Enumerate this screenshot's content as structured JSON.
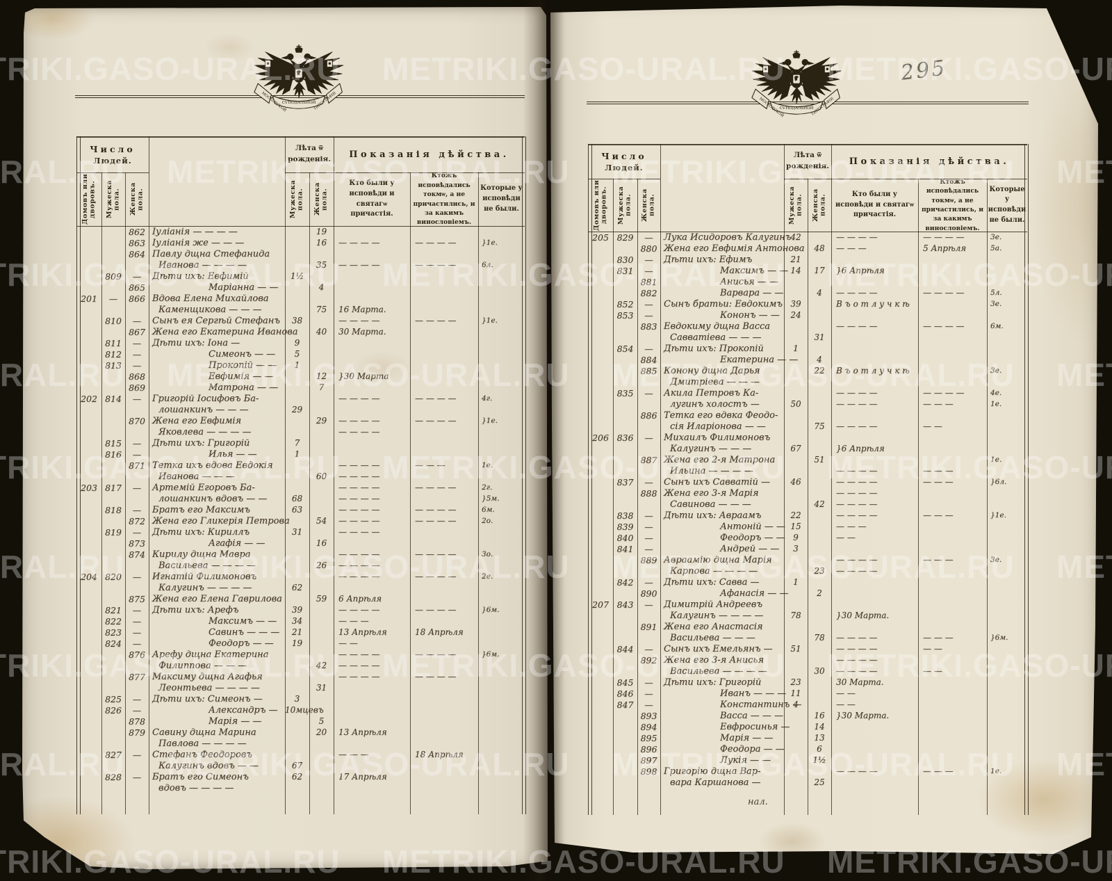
{
  "watermark": {
    "text": "METRIKI.GASO-URAL.RU"
  },
  "page_number": "295",
  "catchword": "нал.",
  "colors": {
    "background": "#131008",
    "paper_left": "#e6dfce",
    "paper_right": "#eae3d1",
    "ink": "#33291c",
    "watermark": "rgba(255,255,255,0.30)",
    "pencil": "#6d6a60"
  },
  "emblem": {
    "ribbon_left": "МОСКОВСКОЙ",
    "ribbon_center": "СѴНОДАЛЬНОЙ",
    "ribbon_right": "ТИПОГРАФІИ"
  },
  "header": {
    "number": "Число",
    "people": "Людей.",
    "houses": "Домовъ или дворовъ.",
    "male": "Мужеска пола.",
    "female": "Женска пола.",
    "age_line1": "Лѣта ѿ",
    "age_line2": "рожденія.",
    "acts": "Показанія дѣйства.",
    "col_communed": "Кто были у исповѣди и святагѡ причастія.",
    "col_confessed": "Ктожъ исповѣдались токмѡ, а не причастились, и за какимъ винословіемъ.",
    "col_absent": "Которые у исповѣди не были."
  },
  "left_page": {
    "rows": [
      {
        "f": "862",
        "n": "Іуліанія — — — —",
        "af": "19"
      },
      {
        "f": "863",
        "n": "Іуліанія же — — —",
        "af": "16",
        "c1": "— — — —",
        "c2": "— — — —",
        "c3": "}1е."
      },
      {
        "f": "864",
        "n": "Павлу дщна Стефанида"
      },
      {
        "i": 2,
        "n": "Иванова — — — —",
        "af": "35",
        "c1": "— — — —",
        "c2": "— — — —",
        "c3": "6л."
      },
      {
        "m": "809",
        "f": "—",
        "n": "Дѣти ихъ: Евфимій",
        "am": "1½"
      },
      {
        "f": "865",
        "n": "Маріанна — —",
        "i": 1,
        "af": "4"
      },
      {
        "h": "201",
        "m": "—",
        "f": "866",
        "n": "Вдова Елена Михайлова"
      },
      {
        "i": 2,
        "n": "Каменщикова — — —",
        "af": "75",
        "c1": "16 Марта."
      },
      {
        "m": "810",
        "f": "—",
        "n": "Сынъ ея Сергѣй Стефанъ",
        "am": "38",
        "c1": "— — — —",
        "c2": "— — — —",
        "c3": "}1е."
      },
      {
        "f": "867",
        "n": "Жена его Екатерина Иванова",
        "af": "40",
        "c1": "30 Марта."
      },
      {
        "m": "811",
        "f": "—",
        "n": "Дѣти ихъ: Іона —",
        "am": "9"
      },
      {
        "m": "812",
        "f": "—",
        "n": "Симеонъ — —",
        "i": 1,
        "am": "5"
      },
      {
        "m": "813",
        "f": "—",
        "n": "Прокопій — —",
        "i": 1,
        "am": "1"
      },
      {
        "f": "868",
        "n": "Евфимія — —",
        "i": 1,
        "af": "12",
        "c1": "}30 Марта"
      },
      {
        "f": "869",
        "n": "Матрона — —",
        "i": 1,
        "af": "7"
      },
      {
        "h": "202",
        "m": "814",
        "f": "—",
        "n": "Григорій Іосифовъ Ба-",
        "c1": "— — — —",
        "c2": "— — — —",
        "c3": "4г."
      },
      {
        "i": 2,
        "n": "лошанкинъ — — —",
        "am": "29"
      },
      {
        "f": "870",
        "n": "Жена его Евфимія",
        "af": "29",
        "c1": "— — — —",
        "c2": "— — — —",
        "c3": "}1е."
      },
      {
        "i": 2,
        "n": "Яковлева — — — —",
        "c1": "— — — —"
      },
      {
        "m": "815",
        "f": "—",
        "n": "Дѣти ихъ: Григорій",
        "am": "7"
      },
      {
        "m": "816",
        "f": "—",
        "n": "Илья — —",
        "i": 1,
        "am": "1"
      },
      {
        "f": "871",
        "n": "Тетка ихъ вдова Евдокія",
        "c1": "— — — —",
        "c2": "— — —",
        "c3": "1е."
      },
      {
        "i": 2,
        "n": "Иванова — — —",
        "af": "60",
        "c1": "— — — —"
      },
      {
        "h": "203",
        "m": "817",
        "f": "—",
        "n": "Артемій Егоровъ Ба-",
        "c1": "— — — —",
        "c2": "— — — —",
        "c3": "2г."
      },
      {
        "i": 2,
        "n": "лошанкинъ вдовъ — —",
        "am": "68",
        "c1": "— — — —",
        "c3": "}5м."
      },
      {
        "m": "818",
        "f": "—",
        "n": "Братъ его Максимъ",
        "am": "63",
        "c1": "— — — —",
        "c2": "— — — —",
        "c3": "6м."
      },
      {
        "f": "872",
        "n": "Жена его Гликерія Петрова",
        "af": "54",
        "c1": "— — — —",
        "c2": "— — — —",
        "c3": "2о."
      },
      {
        "m": "819",
        "f": "—",
        "n": "Дѣти ихъ: Кириллъ",
        "am": "31",
        "c1": "— — — —"
      },
      {
        "f": "873",
        "n": "Агафія — —",
        "i": 1,
        "af": "16"
      },
      {
        "f": "874",
        "n": "Кирилу дщна Мавра",
        "c1": "— — — —",
        "c2": "— — — —",
        "c3": "3о."
      },
      {
        "i": 2,
        "n": "Васильева — — — —",
        "af": "26",
        "c1": "— — — —"
      },
      {
        "h": "204",
        "m": "820",
        "f": "—",
        "n": "Игнатій Филимоновъ",
        "c1": "— — — —",
        "c2": "— — — —",
        "c3": "2е."
      },
      {
        "i": 2,
        "n": "Калугинъ — — — —",
        "am": "62"
      },
      {
        "f": "875",
        "n": "Жена его Елена Гаврилова",
        "af": "59",
        "c1": "6 Апрѣля"
      },
      {
        "m": "821",
        "f": "—",
        "n": "Дѣти ихъ: Арефъ",
        "am": "39",
        "c1": "— — — —",
        "c2": "— — — —",
        "c3": "}6м."
      },
      {
        "m": "822",
        "f": "—",
        "n": "Максимъ — —",
        "i": 1,
        "am": "34",
        "c1": "— — —"
      },
      {
        "m": "823",
        "f": "—",
        "n": "Савинъ — — —",
        "i": 1,
        "am": "21",
        "c1": "13 Апрѣля",
        "c2": "18 Апрѣля"
      },
      {
        "m": "824",
        "f": "—",
        "n": "Феодоръ — —",
        "i": 1,
        "am": "19",
        "c1": "— —"
      },
      {
        "f": "876",
        "n": "Арефу дщна Екатерина",
        "c1": "— — — —",
        "c2": "— — — —",
        "c3": "}6м."
      },
      {
        "i": 2,
        "n": "Филиппова — — —",
        "af": "42",
        "c1": "— — — —"
      },
      {
        "f": "877",
        "n": "Максиму дщна Агафья",
        "c1": "— — — —",
        "c2": "— — — —"
      },
      {
        "i": 2,
        "n": "Леонтьева — — — —",
        "af": "31"
      },
      {
        "m": "825",
        "f": "—",
        "n": "Дѣти ихъ: Симеонъ —",
        "am": "3"
      },
      {
        "m": "826",
        "f": "—",
        "n": "Александръ —",
        "i": 1,
        "am": "10мцевъ"
      },
      {
        "f": "878",
        "n": "Марія — —",
        "i": 1,
        "af": "5"
      },
      {
        "f": "879",
        "n": "Савину дщна Марина",
        "af": "20",
        "c1": "13 Апрѣля"
      },
      {
        "i": 2,
        "n": "Павлова — — — —"
      },
      {
        "m": "827",
        "f": "—",
        "n": "Стефанъ Феодоровъ",
        "c1": "— — —",
        "c2": "18 Апрѣля"
      },
      {
        "i": 2,
        "n": "Калугинъ вдовъ — —",
        "am": "67"
      },
      {
        "m": "828",
        "f": "—",
        "n": "Братъ его Симеонъ",
        "am": "62",
        "c1": "17 Апрѣля"
      },
      {
        "i": 2,
        "n": "вдовъ — — — —"
      }
    ]
  },
  "right_page": {
    "rows": [
      {
        "h": "205",
        "m": "829",
        "f": "—",
        "n": "Лука Исидоровъ Калугинъ",
        "am": "42",
        "c1": "— — — —",
        "c2": "— — — —",
        "c3": "3е."
      },
      {
        "f": "880",
        "n": "Жена его Евфимія Антонова",
        "af": "48",
        "c1": "— — —",
        "c2": "5 Апрѣля",
        "c3": "5а."
      },
      {
        "m": "830",
        "f": "—",
        "n": "Дѣти ихъ: Ефимъ",
        "am": "21"
      },
      {
        "m": "831",
        "f": "—",
        "n": "Максимъ — —",
        "i": 1,
        "am": "14",
        "af": "17",
        "c1": "}6 Апрѣля"
      },
      {
        "f": "881",
        "n": "Анисья — —",
        "i": 1
      },
      {
        "f": "882",
        "n": "Варвара — —",
        "i": 1,
        "af": "4",
        "c1": "— — — —",
        "c2": "— — — —",
        "c3": "5л."
      },
      {
        "m": "852",
        "f": "—",
        "n": "Сынъ братьи: Евдокимъ",
        "am": "39",
        "c1": "В ъ   о т л у ч к ѣ",
        "c3": "3е."
      },
      {
        "m": "853",
        "f": "—",
        "n": "Кононъ — —",
        "i": 1,
        "am": "24"
      },
      {
        "f": "883",
        "n": "Евдокиму дщна Васса",
        "c1": "— — — —",
        "c2": "— — — —",
        "c3": "6м."
      },
      {
        "i": 2,
        "n": "Савватіева — — —",
        "af": "31"
      },
      {
        "m": "854",
        "f": "—",
        "n": "Дѣти ихъ: Прокопій",
        "am": "1"
      },
      {
        "f": "884",
        "n": "Екатерина — —",
        "i": 1,
        "af": "4"
      },
      {
        "f": "885",
        "n": "Конону дщна Дарья",
        "af": "22",
        "c1": "В ъ   о т л у ч к ѣ",
        "c3": "3е."
      },
      {
        "i": 2,
        "n": "Дмитріева — — —"
      },
      {
        "m": "835",
        "f": "—",
        "n": "Акила Петровъ Ка-",
        "c1": "— — — —",
        "c2": "— — — —",
        "c3": "4е."
      },
      {
        "i": 2,
        "n": "лугинъ холостъ —",
        "am": "50",
        "c1": "— — — —",
        "c2": "— — —",
        "c3": "1е."
      },
      {
        "f": "886",
        "n": "Тетка его вдвка Феодо-"
      },
      {
        "i": 2,
        "n": "сія Иларіонова — —",
        "af": "75",
        "c1": "— — — —",
        "c2": "— —"
      },
      {
        "h": "206",
        "m": "836",
        "f": "—",
        "n": "Михаилъ Филимоновъ"
      },
      {
        "i": 2,
        "n": "Калугинъ — — —",
        "am": "67",
        "c1": "}6 Апрѣля"
      },
      {
        "f": "887",
        "n": "Жена его 2-я Матрона",
        "af": "51",
        "c3": "1е."
      },
      {
        "i": 2,
        "n": "Ильина — — — —",
        "c1": "— — — —",
        "c2": "— — —"
      },
      {
        "m": "837",
        "f": "—",
        "n": "Сынъ ихъ Савватій —",
        "am": "46",
        "c1": "— — — —",
        "c2": "— — —",
        "c3": "}6л."
      },
      {
        "f": "888",
        "n": "Жена его 3-я Марія",
        "c1": "— — — —"
      },
      {
        "i": 2,
        "n": "Савинова — — —",
        "af": "42",
        "c1": "— — — —"
      },
      {
        "m": "838",
        "f": "—",
        "n": "Дѣти ихъ: Авраамъ",
        "am": "22",
        "c1": "— — — —",
        "c2": "— — —",
        "c3": "}1е."
      },
      {
        "m": "839",
        "f": "—",
        "n": "Антоній — —",
        "i": 1,
        "am": "15",
        "c1": "— — —"
      },
      {
        "m": "840",
        "f": "—",
        "n": "Феодоръ — —",
        "i": 1,
        "am": "9",
        "c1": "— —"
      },
      {
        "m": "841",
        "f": "—",
        "n": "Андрей — —",
        "i": 1,
        "am": "3"
      },
      {
        "f": "889",
        "n": "Авраамію дщна Марія",
        "c1": "— — — —",
        "c2": "— — —",
        "c3": "3е."
      },
      {
        "i": 2,
        "n": "Карпова — — — —",
        "af": "23",
        "c1": "— — — —"
      },
      {
        "m": "842",
        "f": "—",
        "n": "Дѣти ихъ: Савва —",
        "am": "1"
      },
      {
        "f": "890",
        "n": "Афанасія — —",
        "i": 1,
        "af": "2"
      },
      {
        "h": "207",
        "m": "843",
        "f": "—",
        "n": "Димитрій Андреевъ"
      },
      {
        "i": 2,
        "n": "Калугинъ — — — —",
        "am": "78",
        "c1": "}30 Марта."
      },
      {
        "f": "891",
        "n": "Жена его Анастасія"
      },
      {
        "i": 2,
        "n": "Васильева — — —",
        "af": "78",
        "c1": "— — — —",
        "c2": "— — —",
        "c3": "}6м."
      },
      {
        "m": "844",
        "f": "—",
        "n": "Сынъ ихъ Емельянъ —",
        "am": "51",
        "c1": "— — — —",
        "c2": "— —"
      },
      {
        "f": "892",
        "n": "Жена его 3-я Анисья",
        "c1": "— — — —"
      },
      {
        "i": 2,
        "n": "Васильева — — — —",
        "af": "30",
        "c1": "— — — —",
        "c2": "— —"
      },
      {
        "m": "845",
        "f": "—",
        "n": "Дѣти ихъ: Григорій",
        "am": "23",
        "c1": "30 Марта."
      },
      {
        "m": "846",
        "f": "—",
        "n": "Иванъ — — —",
        "i": 1,
        "am": "11",
        "c1": "— —"
      },
      {
        "m": "847",
        "f": "—",
        "n": "Константинъ —",
        "i": 1,
        "am": "4",
        "c1": "— —"
      },
      {
        "f": "893",
        "n": "Васса — — —",
        "i": 1,
        "af": "16",
        "c1": "}30 Марта."
      },
      {
        "f": "894",
        "n": "Евфросинья —",
        "i": 1,
        "af": "14"
      },
      {
        "f": "895",
        "n": "Марія — —",
        "i": 1,
        "af": "13"
      },
      {
        "f": "896",
        "n": "Феодора — —",
        "i": 1,
        "af": "6"
      },
      {
        "f": "897",
        "n": "Лукія — —",
        "i": 1,
        "af": "1½"
      },
      {
        "f": "898",
        "n": "Григорію дщна Вар-",
        "c1": "— — — —",
        "c2": "— — —",
        "c3": "1е."
      },
      {
        "i": 2,
        "n": "вара Каршанова —",
        "af": "25"
      }
    ]
  }
}
